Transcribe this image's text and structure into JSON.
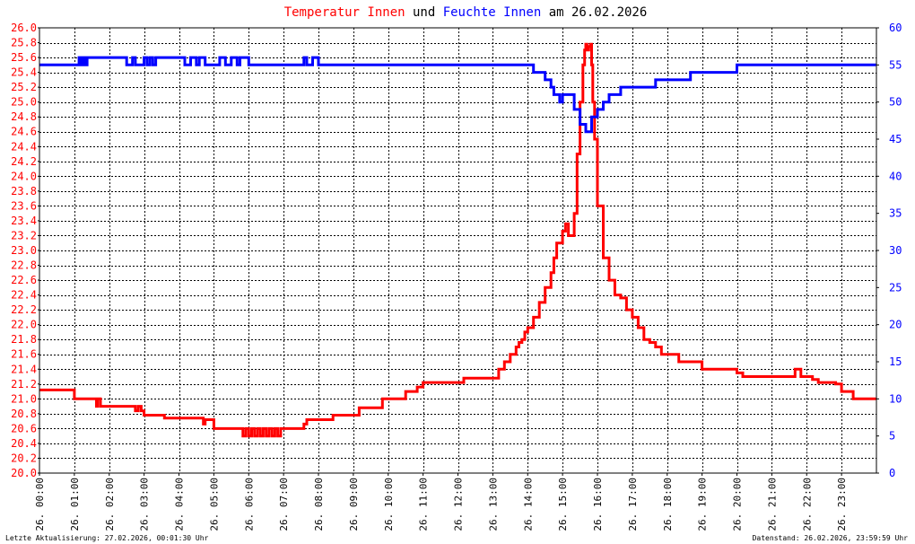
{
  "title": {
    "parts": [
      {
        "text": "Temperatur Innen",
        "color": "#ff0000"
      },
      {
        "text": " und ",
        "color": "#000000"
      },
      {
        "text": "Feuchte Innen",
        "color": "#0000ff"
      },
      {
        "text": " am 26.02.2026",
        "color": "#000000"
      }
    ]
  },
  "footer": {
    "left": "Letzte Aktualisierung: 27.02.2026, 00:01:30 Uhr",
    "right": "Datenstand: 26.02.2026, 23:59:59 Uhr"
  },
  "colors": {
    "temperature": "#ff0000",
    "humidity": "#0000ff",
    "grid": "#000000",
    "text": "#000000"
  },
  "chart_data": {
    "type": "line",
    "grid": true,
    "x_tick_labels": [
      "26. 00:00",
      "26. 01:00",
      "26. 02:00",
      "26. 03:00",
      "26. 04:00",
      "26. 05:00",
      "26. 06:00",
      "26. 07:00",
      "26. 08:00",
      "26. 09:00",
      "26. 10:00",
      "26. 11:00",
      "26. 12:00",
      "26. 13:00",
      "26. 14:00",
      "26. 15:00",
      "26. 16:00",
      "26. 17:00",
      "26. 18:00",
      "26. 19:00",
      "26. 20:00",
      "26. 21:00",
      "26. 22:00",
      "26. 23:00"
    ],
    "y_left": {
      "min": 20.0,
      "max": 26.0,
      "step": 0.2,
      "tick_labels": [
        "20.0",
        "20.2",
        "20.4",
        "20.6",
        "20.8",
        "21.0",
        "21.2",
        "21.4",
        "21.6",
        "21.8",
        "22.0",
        "22.2",
        "22.4",
        "22.6",
        "22.8",
        "23.0",
        "23.2",
        "23.4",
        "23.6",
        "23.8",
        "24.0",
        "24.2",
        "24.4",
        "24.6",
        "24.8",
        "25.0",
        "25.2",
        "25.4",
        "25.6",
        "25.8",
        "26.0"
      ]
    },
    "y_right": {
      "min": 0,
      "max": 60,
      "step": 5,
      "tick_labels": [
        "0",
        "5",
        "10",
        "15",
        "20",
        "25",
        "30",
        "35",
        "40",
        "45",
        "50",
        "55",
        "60"
      ]
    },
    "series": [
      {
        "name": "Temperatur Innen",
        "axis": "left",
        "x": [
          "00:00",
          "00:55",
          "01:00",
          "01:35",
          "01:38",
          "01:40",
          "01:45",
          "01:50",
          "02:40",
          "02:45",
          "02:50",
          "02:55",
          "03:00",
          "03:30",
          "03:35",
          "04:40",
          "04:42",
          "04:45",
          "05:00",
          "05:40",
          "05:45",
          "05:50",
          "05:55",
          "06:00",
          "06:05",
          "06:10",
          "06:15",
          "06:20",
          "06:25",
          "06:30",
          "06:35",
          "06:40",
          "06:45",
          "06:50",
          "06:55",
          "07:00",
          "07:30",
          "07:35",
          "07:40",
          "07:45",
          "08:20",
          "08:25",
          "08:30",
          "09:00",
          "09:10",
          "09:20",
          "09:30",
          "09:50",
          "10:00",
          "10:30",
          "10:45",
          "10:50",
          "11:00",
          "11:50",
          "12:00",
          "12:10",
          "12:20",
          "13:00",
          "13:10",
          "13:20",
          "13:30",
          "13:40",
          "13:45",
          "13:50",
          "13:55",
          "14:00",
          "14:10",
          "14:20",
          "14:30",
          "14:40",
          "14:45",
          "14:50",
          "14:55",
          "15:00",
          "15:05",
          "15:10",
          "15:15",
          "15:20",
          "15:25",
          "15:30",
          "15:35",
          "15:38",
          "15:40",
          "15:42",
          "15:45",
          "15:48",
          "15:50",
          "15:52",
          "15:55",
          "16:00",
          "16:10",
          "16:20",
          "16:30",
          "16:40",
          "16:50",
          "17:00",
          "17:10",
          "17:20",
          "17:30",
          "17:40",
          "17:50",
          "18:00",
          "18:20",
          "18:30",
          "18:45",
          "19:00",
          "19:30",
          "19:45",
          "20:00",
          "20:10",
          "20:15",
          "20:30",
          "21:00",
          "21:30",
          "21:40",
          "21:50",
          "22:00",
          "22:10",
          "22:20",
          "22:40",
          "22:50",
          "23:00",
          "23:10",
          "23:20",
          "23:59"
        ],
        "values": [
          21.12,
          21.12,
          21.0,
          21.0,
          20.9,
          21.0,
          20.9,
          20.9,
          20.9,
          20.84,
          20.9,
          20.84,
          20.78,
          20.78,
          20.74,
          20.74,
          20.66,
          20.72,
          20.6,
          20.6,
          20.6,
          20.5,
          20.6,
          20.5,
          20.6,
          20.5,
          20.6,
          20.5,
          20.6,
          20.5,
          20.6,
          20.5,
          20.6,
          20.5,
          20.6,
          20.6,
          20.6,
          20.66,
          20.72,
          20.72,
          20.72,
          20.78,
          20.78,
          20.78,
          20.88,
          20.88,
          20.88,
          21.0,
          21.0,
          21.1,
          21.1,
          21.16,
          21.22,
          21.22,
          21.22,
          21.28,
          21.28,
          21.28,
          21.4,
          21.5,
          21.6,
          21.7,
          21.76,
          21.8,
          21.9,
          21.96,
          22.1,
          22.3,
          22.5,
          22.7,
          22.9,
          23.1,
          23.1,
          23.26,
          23.36,
          23.2,
          23.2,
          23.5,
          24.3,
          25.0,
          25.5,
          25.7,
          25.78,
          25.7,
          25.75,
          25.78,
          25.5,
          25.0,
          24.5,
          23.6,
          22.9,
          22.6,
          22.4,
          22.36,
          22.2,
          22.1,
          21.96,
          21.8,
          21.76,
          21.7,
          21.6,
          21.6,
          21.5,
          21.5,
          21.5,
          21.4,
          21.4,
          21.4,
          21.35,
          21.3,
          21.3,
          21.3,
          21.3,
          21.3,
          21.4,
          21.3,
          21.3,
          21.26,
          21.22,
          21.22,
          21.2,
          21.1,
          21.1,
          21.0,
          21.0
        ]
      },
      {
        "name": "Feuchte Innen",
        "axis": "right",
        "x": [
          "00:00",
          "01:05",
          "01:08",
          "01:10",
          "01:12",
          "01:15",
          "01:18",
          "01:20",
          "01:22",
          "01:25",
          "01:35",
          "01:40",
          "02:20",
          "02:30",
          "02:40",
          "02:45",
          "03:00",
          "03:05",
          "03:10",
          "03:15",
          "03:20",
          "03:30",
          "04:00",
          "04:10",
          "04:20",
          "04:30",
          "04:35",
          "04:45",
          "05:00",
          "05:10",
          "05:20",
          "05:30",
          "05:40",
          "05:45",
          "06:00",
          "07:30",
          "07:35",
          "07:40",
          "07:50",
          "07:55",
          "08:00",
          "13:50",
          "14:10",
          "14:20",
          "14:30",
          "14:40",
          "14:45",
          "14:50",
          "14:55",
          "15:00",
          "15:10",
          "15:20",
          "15:30",
          "15:35",
          "15:40",
          "15:50",
          "16:00",
          "16:10",
          "16:20",
          "16:30",
          "16:40",
          "17:00",
          "17:30",
          "17:40",
          "18:00",
          "18:20",
          "18:30",
          "18:40",
          "19:00",
          "19:45",
          "20:00",
          "21:00",
          "22:00",
          "23:00",
          "23:59"
        ],
        "values": [
          55,
          55,
          56,
          55,
          56,
          55,
          56,
          55,
          56,
          56,
          56,
          56,
          56,
          55,
          56,
          55,
          56,
          55,
          56,
          55,
          56,
          56,
          56,
          55,
          56,
          55,
          56,
          55,
          55,
          56,
          55,
          56,
          55,
          56,
          55,
          55,
          56,
          55,
          56,
          56,
          55,
          55,
          54,
          54,
          53,
          52,
          51,
          51,
          50,
          51,
          51,
          49,
          47,
          47,
          46,
          48,
          49,
          50,
          51,
          51,
          52,
          52,
          52,
          53,
          53,
          53,
          53,
          54,
          54,
          54,
          55,
          55,
          55,
          55,
          55
        ]
      }
    ]
  }
}
